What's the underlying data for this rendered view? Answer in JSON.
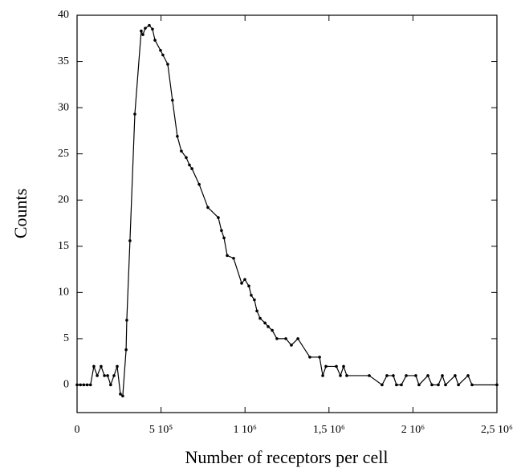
{
  "chart_data": {
    "type": "line",
    "x_label": "Number of receptors per cell",
    "y_label": "Counts",
    "x": [
      0,
      20000,
      40000,
      60000,
      80000,
      100000,
      120000,
      143000,
      163000,
      182000,
      200000,
      220000,
      239000,
      258000,
      272000,
      292000,
      296000,
      315000,
      344000,
      382000,
      392000,
      406000,
      430000,
      449000,
      464000,
      497000,
      511000,
      540000,
      568000,
      597000,
      621000,
      650000,
      669000,
      684000,
      727000,
      779000,
      841000,
      860000,
      875000,
      894000,
      932000,
      980000,
      999000,
      1023000,
      1037000,
      1056000,
      1071000,
      1090000,
      1119000,
      1138000,
      1162000,
      1190000,
      1243000,
      1276000,
      1315000,
      1386000,
      1444000,
      1463000,
      1482000,
      1544000,
      1568000,
      1587000,
      1606000,
      1740000,
      1816000,
      1845000,
      1883000,
      1902000,
      1931000,
      1960000,
      2017000,
      2036000,
      2089000,
      2113000,
      2151000,
      2175000,
      2194000,
      2251000,
      2271000,
      2328000,
      2352000,
      2500000
    ],
    "values": [
      0,
      0,
      0,
      0,
      0,
      2,
      1,
      2,
      1,
      1,
      0,
      1,
      2,
      -1,
      -1.2,
      3.8,
      7,
      15.6,
      29.3,
      38.3,
      37.9,
      38.6,
      38.9,
      38.5,
      37.3,
      36.2,
      35.7,
      34.7,
      30.8,
      26.9,
      25.3,
      24.6,
      23.8,
      23.4,
      21.7,
      19.2,
      18.1,
      16.7,
      15.9,
      14,
      13.7,
      11,
      11.4,
      10.7,
      9.7,
      9.2,
      8,
      7.2,
      6.7,
      6.3,
      5.9,
      5,
      5,
      4.3,
      5,
      3,
      3,
      1,
      2,
      2,
      1,
      2,
      1,
      1,
      0,
      1,
      1,
      0,
      0,
      1,
      1,
      0,
      1,
      0,
      0,
      1,
      0,
      1,
      0,
      1,
      0,
      0
    ],
    "color": "#000000",
    "xlim": [
      0,
      2500000
    ],
    "xticks": [
      0,
      {
        "value": 500000,
        "label": "5 10⁵"
      },
      {
        "value": 1000000,
        "label": "1 10⁶"
      },
      {
        "value": 1500000,
        "label": "1,5 10⁶"
      },
      {
        "value": 2000000,
        "label": "2 10⁶"
      },
      {
        "value": 2500000,
        "label": "2,5 10⁶"
      }
    ],
    "ylim": [
      -3,
      40
    ],
    "yticks": [
      0,
      5,
      10,
      15,
      20,
      25,
      30,
      35,
      40
    ]
  }
}
